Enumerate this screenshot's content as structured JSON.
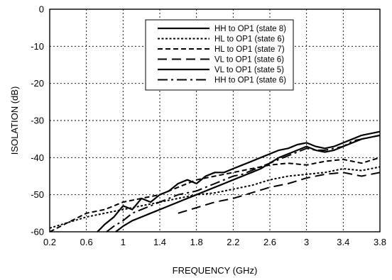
{
  "chart_data": {
    "type": "line",
    "title": "",
    "xlabel": "FREQUENCY (GHz)",
    "ylabel": "ISOLATION (dB)",
    "xlim": [
      0.2,
      3.8
    ],
    "ylim": [
      -60,
      0
    ],
    "xticks": [
      "0.2",
      "0.6",
      "1",
      "1.4",
      "1.8",
      "2.2",
      "2.6",
      "3",
      "3.4",
      "3.8"
    ],
    "yticks": [
      "0",
      "-10",
      "-20",
      "-30",
      "-40",
      "-50",
      "-60"
    ],
    "grid": true,
    "legend_position": "top-right",
    "series": [
      {
        "name": "HH to OP1 (state 8)",
        "style": "solid",
        "x": [
          0.72,
          0.8,
          0.9,
          1.0,
          1.1,
          1.2,
          1.3,
          1.4,
          1.5,
          1.6,
          1.7,
          1.8,
          1.9,
          2.0,
          2.1,
          2.2,
          2.3,
          2.4,
          2.5,
          2.6,
          2.7,
          2.8,
          2.9,
          3.0,
          3.1,
          3.2,
          3.3,
          3.4,
          3.5,
          3.6,
          3.7,
          3.8
        ],
        "y": [
          -60,
          -58,
          -56,
          -53,
          -54,
          -51,
          -52,
          -50,
          -49,
          -47,
          -46,
          -47,
          -45,
          -44,
          -44,
          -43,
          -42,
          -41,
          -40,
          -39,
          -38,
          -37.5,
          -36.5,
          -36,
          -37,
          -37.5,
          -37,
          -36,
          -35,
          -34,
          -33.5,
          -33
        ]
      },
      {
        "name": "HL to OP1 (state 6)",
        "style": "dotted",
        "x": [
          0.2,
          0.4,
          0.6,
          0.8,
          1.0,
          1.2,
          1.4,
          1.6,
          1.8,
          2.0,
          2.2,
          2.4,
          2.6,
          2.8,
          3.0,
          3.2,
          3.4,
          3.6,
          3.8
        ],
        "y": [
          -59,
          -57.5,
          -56,
          -55,
          -54,
          -53,
          -52,
          -51,
          -50,
          -49.5,
          -48.5,
          -47.5,
          -46,
          -45,
          -44.5,
          -44,
          -43,
          -43.5,
          -42.5
        ]
      },
      {
        "name": "HL to OP1 (state 7)",
        "style": "dashed",
        "x": [
          0.2,
          0.4,
          0.6,
          0.8,
          1.0,
          1.2,
          1.4,
          1.6,
          1.8,
          2.0,
          2.2,
          2.4,
          2.6,
          2.8,
          3.0,
          3.2,
          3.4,
          3.6,
          3.8
        ],
        "y": [
          -60,
          -57.5,
          -55,
          -54,
          -52,
          -51,
          -50,
          -48,
          -46,
          -45,
          -44,
          -43,
          -42,
          -41.5,
          -42,
          -41,
          -40.5,
          -41.5,
          -40
        ]
      },
      {
        "name": "VL to OP1 (state 6)",
        "style": "long-dash",
        "x": [
          1.6,
          1.8,
          2.0,
          2.2,
          2.4,
          2.6,
          2.8,
          3.0,
          3.2,
          3.4,
          3.6,
          3.8
        ],
        "y": [
          -55,
          -53.5,
          -52,
          -51,
          -49.5,
          -48,
          -47,
          -45.5,
          -44.5,
          -44,
          -45,
          -44
        ]
      },
      {
        "name": "VL to OP1 (state 5)",
        "style": "solid",
        "x": [
          0.92,
          1.0,
          1.1,
          1.2,
          1.3,
          1.4,
          1.5,
          1.6,
          1.7,
          1.8,
          1.9,
          2.0,
          2.1,
          2.2,
          2.3,
          2.4,
          2.5,
          2.6,
          2.7,
          2.8,
          2.9,
          3.0,
          3.1,
          3.2,
          3.3,
          3.4,
          3.5,
          3.6,
          3.7,
          3.8
        ],
        "y": [
          -60,
          -58.5,
          -57,
          -56,
          -55,
          -54,
          -53,
          -52,
          -51,
          -50,
          -49,
          -48,
          -47,
          -46,
          -45,
          -44,
          -43,
          -41.5,
          -40,
          -39,
          -38,
          -37,
          -38,
          -38.5,
          -38,
          -37,
          -36,
          -35,
          -34.5,
          -34
        ]
      },
      {
        "name": "HH to OP1 (state 6)",
        "style": "dash-dot",
        "x": [
          0.82,
          0.9,
          1.0,
          1.1,
          1.2,
          1.3,
          1.4,
          1.5,
          1.6,
          1.7,
          1.8,
          1.9,
          2.0,
          2.1,
          2.2,
          2.3,
          2.4,
          2.5,
          2.6,
          2.7,
          2.8,
          2.9,
          3.0,
          3.1,
          3.2,
          3.3,
          3.4,
          3.5,
          3.6,
          3.7,
          3.8
        ],
        "y": [
          -60,
          -58.5,
          -57,
          -55,
          -54,
          -53,
          -52,
          -51,
          -50,
          -49.5,
          -49,
          -48,
          -47,
          -46,
          -45,
          -44.5,
          -43.5,
          -42.5,
          -41.5,
          -40.5,
          -39.5,
          -38.5,
          -37.5,
          -38,
          -38,
          -37.5,
          -37,
          -35.5,
          -35,
          -34.5,
          -34
        ]
      }
    ]
  }
}
